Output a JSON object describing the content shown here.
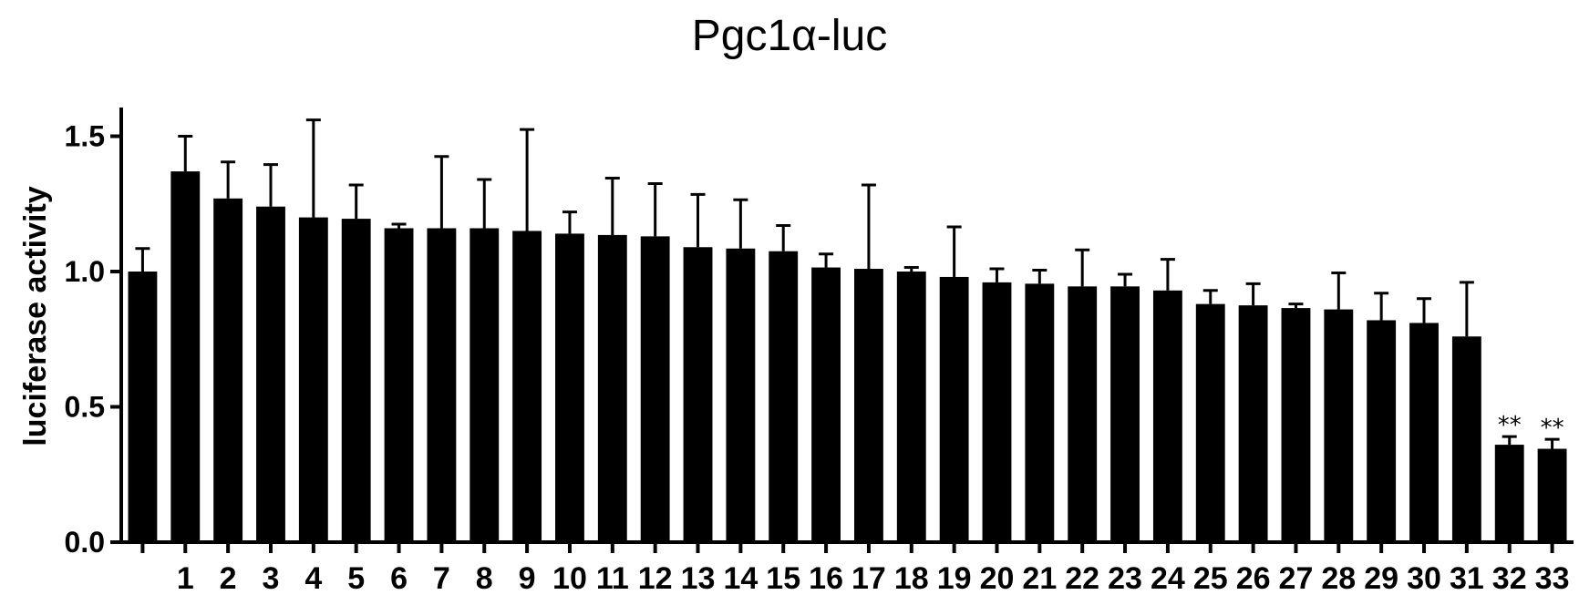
{
  "chart_data": {
    "type": "bar",
    "title": "Pgc1α-luc",
    "xlabel": "",
    "ylabel": "luciferase activity",
    "ylim": [
      0,
      1.6
    ],
    "yticks": [
      "0.0",
      "0.5",
      "1.0",
      "1.5"
    ],
    "grid": false,
    "legend": "none",
    "bar_color": "#000000",
    "categories": [
      "",
      "1",
      "2",
      "3",
      "4",
      "5",
      "6",
      "7",
      "8",
      "9",
      "10",
      "11",
      "12",
      "13",
      "14",
      "15",
      "16",
      "17",
      "18",
      "19",
      "20",
      "21",
      "22",
      "23",
      "24",
      "25",
      "26",
      "27",
      "28",
      "29",
      "30",
      "31",
      "32",
      "33"
    ],
    "values": [
      1.0,
      1.37,
      1.27,
      1.24,
      1.2,
      1.195,
      1.16,
      1.16,
      1.16,
      1.15,
      1.14,
      1.135,
      1.13,
      1.09,
      1.085,
      1.075,
      1.015,
      1.01,
      1.0,
      0.98,
      0.96,
      0.955,
      0.945,
      0.945,
      0.93,
      0.88,
      0.875,
      0.865,
      0.86,
      0.82,
      0.81,
      0.76,
      0.36,
      0.345
    ],
    "errors": [
      0.085,
      0.13,
      0.135,
      0.155,
      0.36,
      0.125,
      0.015,
      0.265,
      0.18,
      0.375,
      0.08,
      0.21,
      0.195,
      0.195,
      0.18,
      0.095,
      0.05,
      0.31,
      0.015,
      0.185,
      0.05,
      0.05,
      0.135,
      0.045,
      0.115,
      0.05,
      0.08,
      0.015,
      0.135,
      0.1,
      0.09,
      0.2,
      0.03,
      0.035
    ],
    "annotations": [
      "",
      "",
      "",
      "",
      "",
      "",
      "",
      "",
      "",
      "",
      "",
      "",
      "",
      "",
      "",
      "",
      "",
      "",
      "",
      "",
      "",
      "",
      "",
      "",
      "",
      "",
      "",
      "",
      "",
      "",
      "",
      "",
      "**",
      "**"
    ]
  }
}
